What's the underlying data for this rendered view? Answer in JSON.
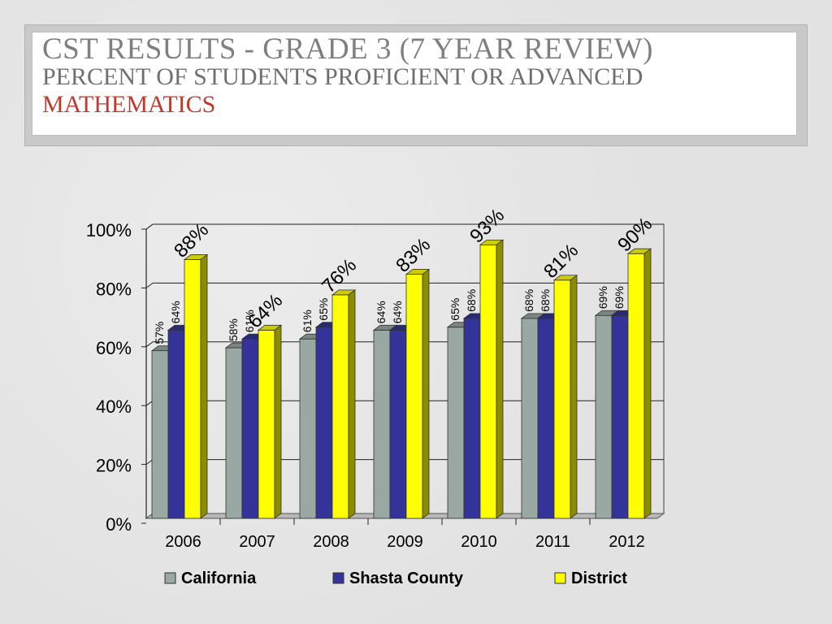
{
  "slide": {
    "title": "CST RESULTS - GRADE 3 (7 YEAR REVIEW)",
    "subtitle": "PERCENT OF STUDENTS PROFICIENT OR ADVANCED",
    "subject": "MATHEMATICS"
  },
  "chart_data": {
    "type": "bar",
    "categories": [
      "2006",
      "2007",
      "2008",
      "2009",
      "2010",
      "2011",
      "2012"
    ],
    "series": [
      {
        "name": "California",
        "color": "#9aa8a4",
        "values": [
          57,
          58,
          61,
          64,
          65,
          68,
          69
        ],
        "labels": [
          "57%",
          "58%",
          "61%",
          "64%",
          "65%",
          "68%",
          "69%"
        ]
      },
      {
        "name": "Shasta County",
        "color": "#333399",
        "values": [
          64,
          61,
          65,
          64,
          68,
          68,
          69
        ],
        "labels": [
          "64%",
          "61%",
          "65%",
          "64%",
          "68%",
          "68%",
          "69%"
        ]
      },
      {
        "name": "District",
        "color": "#ffff00",
        "values": [
          88,
          64,
          76,
          83,
          93,
          81,
          90
        ],
        "labels": [
          "88%",
          "64%",
          "76%",
          "83%",
          "93%",
          "81%",
          "90%"
        ]
      }
    ],
    "y_ticks": [
      "0%",
      "20%",
      "40%",
      "60%",
      "80%",
      "100%"
    ],
    "ylim": [
      0,
      100
    ],
    "grid": true,
    "legend_position": "bottom"
  }
}
